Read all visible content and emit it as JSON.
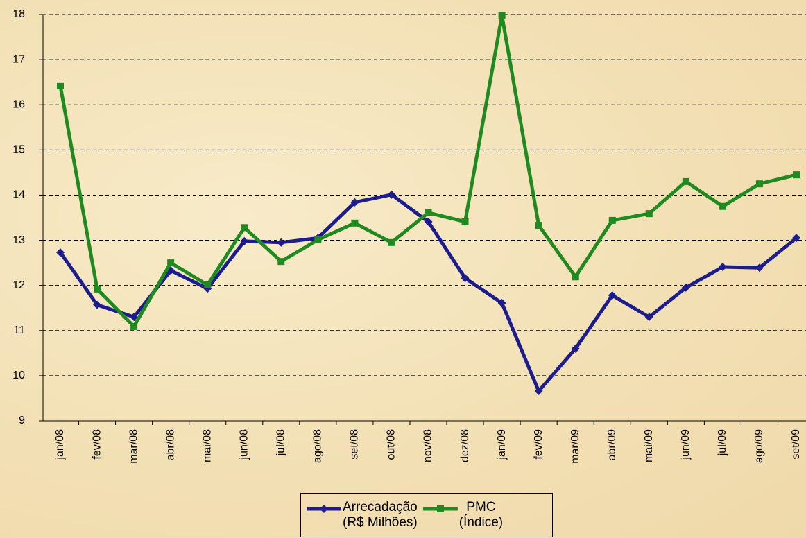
{
  "chart_data": {
    "type": "line",
    "categories": [
      "jan/08",
      "fev/08",
      "mar/08",
      "abr/08",
      "mai/08",
      "jun/08",
      "jul/08",
      "ago/08",
      "set/08",
      "out/08",
      "nov/08",
      "dez/08",
      "jan/09",
      "fev/09",
      "mar/09",
      "abr/09",
      "mai/09",
      "jun/09",
      "jul/09",
      "ago/09",
      "set/09"
    ],
    "series": [
      {
        "name": "Arrecadação\n(R$ Milhões)",
        "color": "#1c1c8f",
        "marker": "diamond",
        "values": [
          12.73,
          11.57,
          11.3,
          12.33,
          11.93,
          12.98,
          12.95,
          13.05,
          13.84,
          14.01,
          13.41,
          12.16,
          11.61,
          9.66,
          10.6,
          11.78,
          11.3,
          11.95,
          12.41,
          12.39,
          13.05
        ]
      },
      {
        "name": "PMC\n(Índice)",
        "color": "#1f8a1f",
        "marker": "square",
        "values": [
          16.42,
          11.92,
          11.09,
          12.5,
          12.01,
          13.28,
          12.53,
          13.01,
          13.38,
          12.95,
          13.61,
          13.41,
          17.98,
          13.33,
          12.19,
          13.44,
          13.59,
          14.3,
          13.75,
          14.25,
          14.45
        ]
      }
    ],
    "ylim": [
      9,
      18
    ],
    "yticks": [
      9,
      10,
      11,
      12,
      13,
      14,
      15,
      16,
      17,
      18
    ],
    "grid": true,
    "legend": "bottom"
  }
}
